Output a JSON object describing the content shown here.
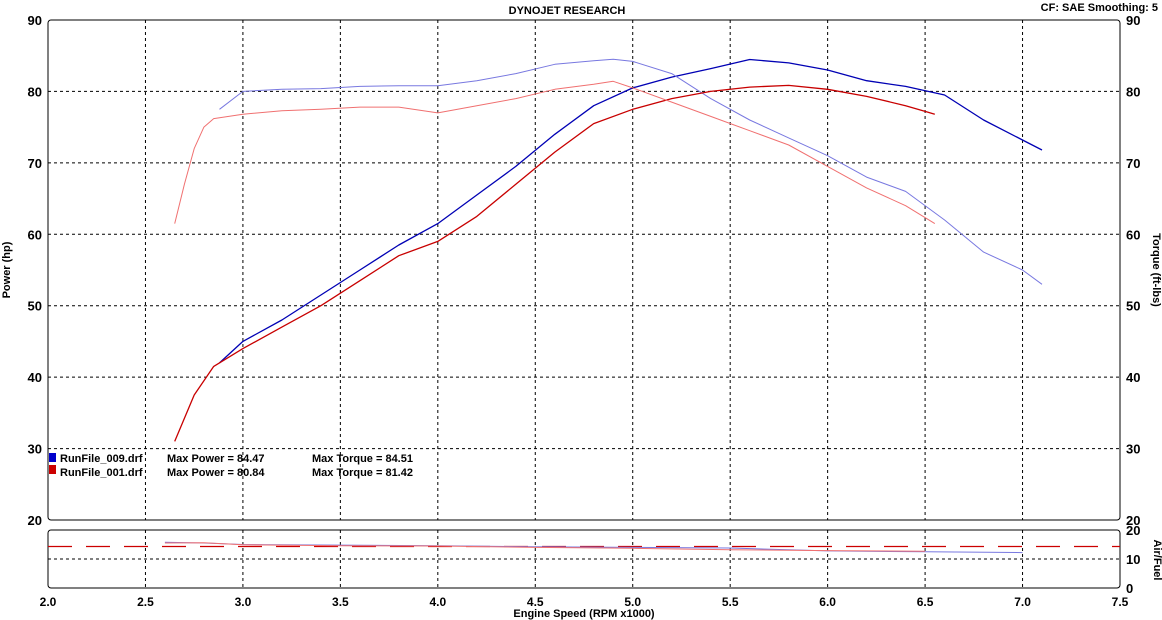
{
  "header": {
    "title": "DYNOJET RESEARCH",
    "settings": "CF: SAE  Smoothing: 5"
  },
  "chart_data": {
    "type": "line",
    "xlabel": "Engine Speed (RPM x1000)",
    "ylabel_left": "Power (hp)",
    "ylabel_right": "Torque (ft-lbs)",
    "ylabel_af": "Air/Fuel",
    "xlim": [
      2.0,
      7.5
    ],
    "ylim": [
      20,
      90
    ],
    "af_ylim": [
      0,
      20
    ],
    "x_ticks": [
      "2.0",
      "2.5",
      "3.0",
      "3.5",
      "4.0",
      "4.5",
      "5.0",
      "5.5",
      "6.0",
      "6.5",
      "7.0",
      "7.5"
    ],
    "y_ticks": [
      "20",
      "30",
      "40",
      "50",
      "60",
      "70",
      "80",
      "90"
    ],
    "af_ticks": [
      "0",
      "10",
      "20"
    ],
    "grid": true,
    "colors": {
      "run009_power": "#0000b4",
      "run009_torque": "#7878e0",
      "run001_power": "#c80000",
      "run001_torque": "#f07070",
      "af_target": "#cc0000"
    },
    "legend": [
      {
        "file": "RunFile_009.drf",
        "power_label": "Max Power = 84.47",
        "torque_label": "Max Torque = 84.51",
        "color": "#0000cc"
      },
      {
        "file": "RunFile_001.drf",
        "power_label": "Max Power = 80.84",
        "torque_label": "Max Torque = 81.42",
        "color": "#cc0000"
      }
    ],
    "series": [
      {
        "id": "run009_power",
        "x": [
          2.88,
          3.0,
          3.2,
          3.4,
          3.6,
          3.8,
          4.0,
          4.2,
          4.4,
          4.6,
          4.8,
          5.0,
          5.2,
          5.4,
          5.6,
          5.8,
          6.0,
          6.2,
          6.4,
          6.6,
          6.8,
          7.0,
          7.1
        ],
        "y": [
          42,
          45,
          48,
          51.5,
          55,
          58.5,
          61.5,
          65.5,
          69.5,
          74,
          78,
          80.5,
          82,
          83.2,
          84.47,
          84,
          83,
          81.5,
          80.7,
          79.5,
          76,
          73.2,
          71.8
        ]
      },
      {
        "id": "run009_torque",
        "x": [
          2.88,
          3.0,
          3.2,
          3.4,
          3.6,
          3.8,
          4.0,
          4.2,
          4.4,
          4.6,
          4.8,
          4.9,
          5.0,
          5.2,
          5.4,
          5.6,
          5.8,
          6.0,
          6.2,
          6.4,
          6.6,
          6.8,
          7.0,
          7.1
        ],
        "y": [
          77.5,
          80,
          80.3,
          80.4,
          80.7,
          80.8,
          80.8,
          81.5,
          82.5,
          83.8,
          84.3,
          84.51,
          84.2,
          82.5,
          79,
          76,
          73.5,
          71,
          68,
          66,
          62,
          57.5,
          55,
          53
        ]
      },
      {
        "id": "run001_power",
        "x": [
          2.65,
          2.75,
          2.85,
          3.0,
          3.2,
          3.4,
          3.6,
          3.8,
          4.0,
          4.2,
          4.4,
          4.6,
          4.8,
          5.0,
          5.2,
          5.4,
          5.6,
          5.8,
          6.0,
          6.2,
          6.4,
          6.5,
          6.55
        ],
        "y": [
          31,
          37.5,
          41.5,
          44,
          47,
          50,
          53.5,
          57,
          59,
          62.5,
          67,
          71.5,
          75.5,
          77.5,
          79,
          80,
          80.6,
          80.84,
          80.3,
          79.3,
          78,
          77.2,
          76.8
        ]
      },
      {
        "id": "run001_torque",
        "x": [
          2.65,
          2.7,
          2.75,
          2.8,
          2.85,
          3.0,
          3.2,
          3.4,
          3.6,
          3.8,
          4.0,
          4.2,
          4.4,
          4.6,
          4.8,
          4.9,
          5.0,
          5.2,
          5.4,
          5.6,
          5.8,
          6.0,
          6.2,
          6.4,
          6.55
        ],
        "y": [
          61.5,
          67,
          72,
          75,
          76.2,
          76.8,
          77.3,
          77.5,
          77.8,
          77.8,
          77,
          78,
          79,
          80.3,
          81,
          81.42,
          80.5,
          78.5,
          76.5,
          74.5,
          72.5,
          69.5,
          66.5,
          64,
          61.5
        ]
      }
    ],
    "af_series": [
      {
        "id": "af_target",
        "x": [
          2.0,
          7.5
        ],
        "y": [
          14.3,
          14.3
        ]
      },
      {
        "id": "run009_af",
        "x": [
          2.6,
          2.8,
          3.0,
          3.5,
          4.0,
          4.5,
          5.0,
          5.5,
          6.0,
          6.5,
          7.0
        ],
        "y": [
          15.8,
          15.5,
          15.0,
          14.8,
          14.6,
          14.2,
          14.0,
          13.8,
          12.8,
          12.5,
          12.2
        ]
      },
      {
        "id": "run001_af",
        "x": [
          2.6,
          2.8,
          3.0,
          3.5,
          4.0,
          4.5,
          5.0,
          5.5,
          6.0,
          6.5
        ],
        "y": [
          15.5,
          15.6,
          14.9,
          14.6,
          14.5,
          14.0,
          13.7,
          13.2,
          12.9,
          12.7
        ]
      }
    ]
  }
}
